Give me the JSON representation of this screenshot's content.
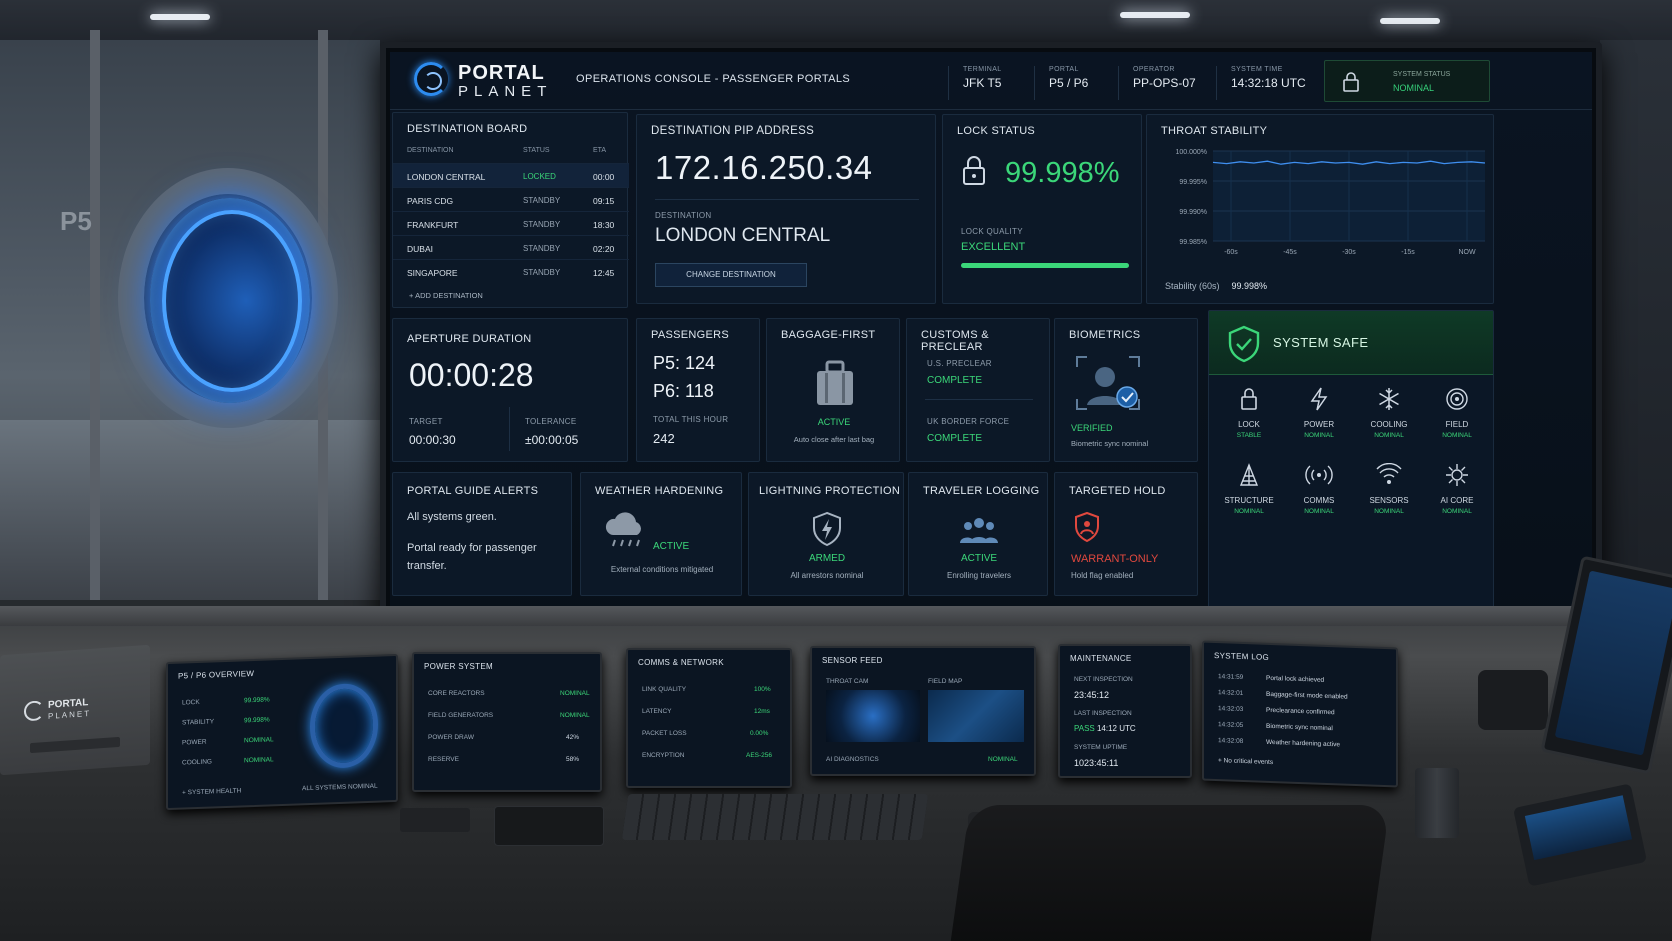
{
  "header": {
    "logo_line1": "PORTAL",
    "logo_line2": "PLANET",
    "console_title": "OPERATIONS CONSOLE - PASSENGER PORTALS",
    "stats": [
      {
        "label": "TERMINAL",
        "value": "JFK T5"
      },
      {
        "label": "PORTAL",
        "value": "P5 / P6"
      },
      {
        "label": "OPERATOR",
        "value": "PP-OPS-07"
      },
      {
        "label": "SYSTEM TIME",
        "value": "14:32:18 UTC"
      }
    ],
    "system_status_label": "SYSTEM STATUS",
    "system_status_value": "NOMINAL"
  },
  "destination_board": {
    "title": "DESTINATION BOARD",
    "columns": [
      "DESTINATION",
      "STATUS",
      "ETA"
    ],
    "rows": [
      {
        "destination": "LONDON CENTRAL",
        "status": "LOCKED",
        "eta": "00:00"
      },
      {
        "destination": "PARIS CDG",
        "status": "STANDBY",
        "eta": "09:15"
      },
      {
        "destination": "FRANKFURT",
        "status": "STANDBY",
        "eta": "18:30"
      },
      {
        "destination": "DUBAI",
        "status": "STANDBY",
        "eta": "02:20"
      },
      {
        "destination": "SINGAPORE",
        "status": "STANDBY",
        "eta": "12:45"
      }
    ],
    "add_label": "ADD DESTINATION"
  },
  "pip": {
    "title": "DESTINATION PIP ADDRESS",
    "address": "172.16.250.34",
    "dest_label": "DESTINATION",
    "dest_value": "LONDON CENTRAL",
    "change_label": "CHANGE DESTINATION"
  },
  "lock_status": {
    "title": "LOCK STATUS",
    "value": "99.998%",
    "quality_label": "LOCK QUALITY",
    "quality_value": "EXCELLENT",
    "quality_fraction": 1.0
  },
  "throat": {
    "title": "THROAT STABILITY",
    "y_ticks": [
      "100.000%",
      "99.995%",
      "99.990%",
      "99.985%"
    ],
    "x_ticks": [
      "-60s",
      "-45s",
      "-30s",
      "-15s",
      "NOW"
    ],
    "stability_label": "Stability (60s)",
    "stability_value": "99.998%"
  },
  "chart_data": {
    "type": "line",
    "title": "THROAT STABILITY",
    "xlabel": "",
    "ylabel": "",
    "x": [
      -60,
      -57,
      -54,
      -51,
      -48,
      -45,
      -42,
      -39,
      -36,
      -33,
      -30,
      -27,
      -24,
      -21,
      -18,
      -15,
      -12,
      -9,
      -6,
      -3,
      0
    ],
    "series": [
      {
        "values": [
          99.9981,
          99.9979,
          99.9982,
          99.998,
          99.9983,
          99.9978,
          99.9981,
          99.9979,
          99.9982,
          99.998,
          99.9981,
          99.9978,
          99.9982,
          99.9979,
          99.9981,
          99.998,
          99.9983,
          99.9979,
          99.9981,
          99.9982,
          99.998
        ]
      }
    ],
    "ylim": [
      99.985,
      100.0
    ],
    "grid": true
  },
  "aperture": {
    "title": "APERTURE DURATION",
    "value": "00:00:28",
    "target_label": "TARGET",
    "target_value": "00:00:30",
    "tol_label": "TOLERANCE",
    "tol_value": "±00:00:05"
  },
  "passengers": {
    "title": "PASSENGERS",
    "p5": "P5: 124",
    "p6": "P6: 118",
    "total_label": "TOTAL THIS HOUR",
    "total_value": "242"
  },
  "baggage": {
    "title": "BAGGAGE-FIRST",
    "status": "ACTIVE",
    "note": "Auto close after last bag"
  },
  "customs": {
    "title": "CUSTOMS & PRECLEAR",
    "a_label": "U.S. PRECLEAR",
    "a_value": "COMPLETE",
    "b_label": "UK BORDER FORCE",
    "b_value": "COMPLETE"
  },
  "biometrics": {
    "title": "BIOMETRICS",
    "status": "VERIFIED",
    "note": "Biometric sync nominal"
  },
  "system_safe": {
    "title": "SYSTEM SAFE",
    "items": [
      {
        "name": "LOCK",
        "status": "STABLE",
        "icon": "lock-icon"
      },
      {
        "name": "POWER",
        "status": "NOMINAL",
        "icon": "power-icon"
      },
      {
        "name": "COOLING",
        "status": "NOMINAL",
        "icon": "snowflake-icon"
      },
      {
        "name": "FIELD",
        "status": "NOMINAL",
        "icon": "field-icon"
      },
      {
        "name": "STRUCTURE",
        "status": "NOMINAL",
        "icon": "structure-icon"
      },
      {
        "name": "COMMS",
        "status": "NOMINAL",
        "icon": "comms-icon"
      },
      {
        "name": "SENSORS",
        "status": "NOMINAL",
        "icon": "sensors-icon"
      },
      {
        "name": "AI CORE",
        "status": "NOMINAL",
        "icon": "ai-core-icon"
      }
    ]
  },
  "alerts": {
    "title": "PORTAL GUIDE ALERTS",
    "line1": "All systems green.",
    "line2": "Portal ready for passenger transfer."
  },
  "weather": {
    "title": "WEATHER HARDENING",
    "status": "ACTIVE",
    "note": "External conditions mitigated"
  },
  "lightning": {
    "title": "LIGHTNING PROTECTION",
    "status": "ARMED",
    "note": "All arrestors nominal"
  },
  "traveler": {
    "title": "TRAVELER LOGGING",
    "status": "ACTIVE",
    "note": "Enrolling travelers"
  },
  "hold": {
    "title": "TARGETED HOLD",
    "status": "WARRANT-ONLY",
    "note": "Hold flag enabled"
  },
  "desk": {
    "brand1": "PORTAL",
    "brand2": "PLANET",
    "overview": {
      "title": "P5 / P6 OVERVIEW",
      "rows": [
        {
          "k": "LOCK",
          "v": "99.998%"
        },
        {
          "k": "STABILITY",
          "v": "99.998%"
        },
        {
          "k": "POWER",
          "v": "NOMINAL"
        },
        {
          "k": "COOLING",
          "v": "NOMINAL"
        }
      ],
      "footer_left": "SYSTEM HEALTH",
      "footer_right": "ALL SYSTEMS NOMINAL"
    },
    "power": {
      "title": "POWER SYSTEM",
      "rows": [
        {
          "k": "CORE REACTORS",
          "v": "NOMINAL"
        },
        {
          "k": "FIELD GENERATORS",
          "v": "NOMINAL"
        },
        {
          "k": "POWER DRAW",
          "v": "42%"
        },
        {
          "k": "RESERVE",
          "v": "58%"
        }
      ]
    },
    "comms": {
      "title": "COMMS & NETWORK",
      "rows": [
        {
          "k": "LINK QUALITY",
          "v": "100%"
        },
        {
          "k": "LATENCY",
          "v": "12ms"
        },
        {
          "k": "PACKET LOSS",
          "v": "0.00%"
        },
        {
          "k": "ENCRYPTION",
          "v": "AES-256"
        }
      ]
    },
    "sensor": {
      "title": "SENSOR FEED",
      "cam_label": "THROAT CAM",
      "map_label": "FIELD MAP",
      "diag_label": "AI DIAGNOSTICS",
      "diag_value": "NOMINAL"
    },
    "maintenance": {
      "title": "MAINTENANCE",
      "next_label": "NEXT INSPECTION",
      "next_value": "23:45:12",
      "last_label": "LAST INSPECTION",
      "last_status": "PASS",
      "last_time": "14:12 UTC",
      "uptime_label": "SYSTEM UPTIME",
      "uptime_value": "1023:45:11"
    },
    "log": {
      "title": "SYSTEM LOG",
      "rows": [
        {
          "t": "14:31:59",
          "m": "Portal lock achieved"
        },
        {
          "t": "14:32:01",
          "m": "Baggage-first mode enabled"
        },
        {
          "t": "14:32:03",
          "m": "Preclearance confirmed"
        },
        {
          "t": "14:32:05",
          "m": "Biometric sync nominal"
        },
        {
          "t": "14:32:08",
          "m": "Weather hardening active"
        }
      ],
      "footer": "No critical events"
    }
  },
  "background": {
    "gate_label": "P5"
  },
  "colors": {
    "accent_green": "#3bd679",
    "accent_blue": "#2d8cf0",
    "warning_red": "#e0483e"
  }
}
